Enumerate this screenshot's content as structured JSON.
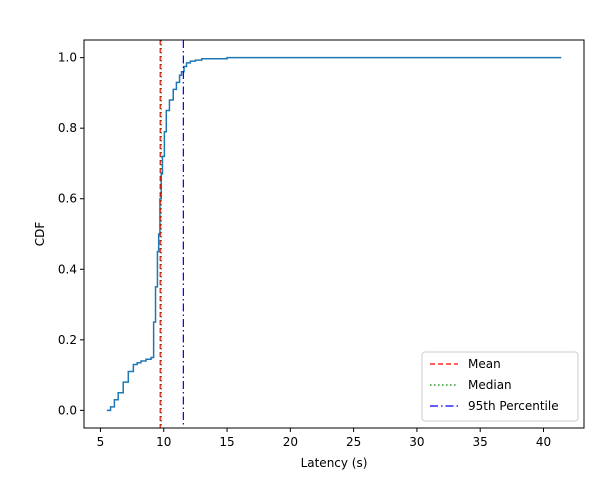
{
  "chart_data": {
    "type": "line",
    "title": "",
    "xlabel": "Latency (s)",
    "ylabel": "CDF",
    "xlim": [
      3.7,
      43.2
    ],
    "ylim": [
      -0.05,
      1.05
    ],
    "xticks": [
      5,
      10,
      15,
      20,
      25,
      30,
      35,
      40
    ],
    "yticks": [
      0.0,
      0.2,
      0.4,
      0.6,
      0.8,
      1.0
    ],
    "xtick_labels": [
      "5",
      "10",
      "15",
      "20",
      "25",
      "30",
      "35",
      "40"
    ],
    "ytick_labels": [
      "0.0",
      "0.2",
      "0.4",
      "0.6",
      "0.8",
      "1.0"
    ],
    "grid": false,
    "legend_position": "lower-right",
    "series": [
      {
        "color": "#1f77b4",
        "style": "step",
        "x": [
          5.5,
          5.8,
          6.1,
          6.4,
          6.8,
          7.2,
          7.6,
          7.9,
          8.2,
          8.6,
          9.0,
          9.2,
          9.35,
          9.5,
          9.6,
          9.7,
          9.8,
          9.9,
          10.05,
          10.2,
          10.45,
          10.75,
          11.0,
          11.25,
          11.4,
          11.6,
          11.8,
          12.1,
          12.5,
          13.0,
          15.0,
          41.4
        ],
        "y": [
          0.0,
          0.01,
          0.03,
          0.05,
          0.08,
          0.11,
          0.13,
          0.135,
          0.14,
          0.145,
          0.15,
          0.25,
          0.35,
          0.45,
          0.5,
          0.6,
          0.67,
          0.72,
          0.79,
          0.85,
          0.88,
          0.91,
          0.93,
          0.95,
          0.96,
          0.975,
          0.985,
          0.99,
          0.993,
          0.997,
          1.0,
          1.0
        ]
      }
    ],
    "vlines": [
      {
        "name": "Mean",
        "x": 9.72,
        "color": "#ff0000",
        "dash": "5,3"
      },
      {
        "name": "Median",
        "x": 9.8,
        "color": "#008000",
        "dash": "1.5,2.5"
      },
      {
        "name": "95th Percentile",
        "x": 11.55,
        "color": "#0000ff",
        "dash": "8,3,1.5,3"
      }
    ],
    "legend": [
      "Mean",
      "Median",
      "95th Percentile"
    ]
  }
}
